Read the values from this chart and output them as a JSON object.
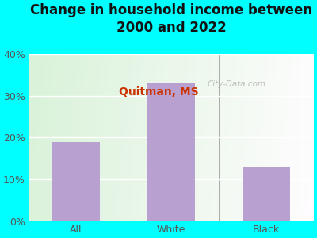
{
  "title": "Change in household income between\n2000 and 2022",
  "subtitle": "Quitman, MS",
  "categories": [
    "All",
    "White",
    "Black"
  ],
  "values": [
    19,
    33,
    13
  ],
  "bar_color": "#b8a0d0",
  "background_color": "#00ffff",
  "title_fontsize": 12,
  "title_color": "#111111",
  "subtitle_fontsize": 10,
  "subtitle_color": "#cc3300",
  "tick_label_fontsize": 9,
  "tick_color": "#555555",
  "ylim": [
    0,
    40
  ],
  "yticks": [
    0,
    10,
    20,
    30,
    40
  ],
  "watermark": "City-Data.com",
  "plot_bg_left": "#d8f0d0",
  "plot_bg_right": "#f5faf5"
}
